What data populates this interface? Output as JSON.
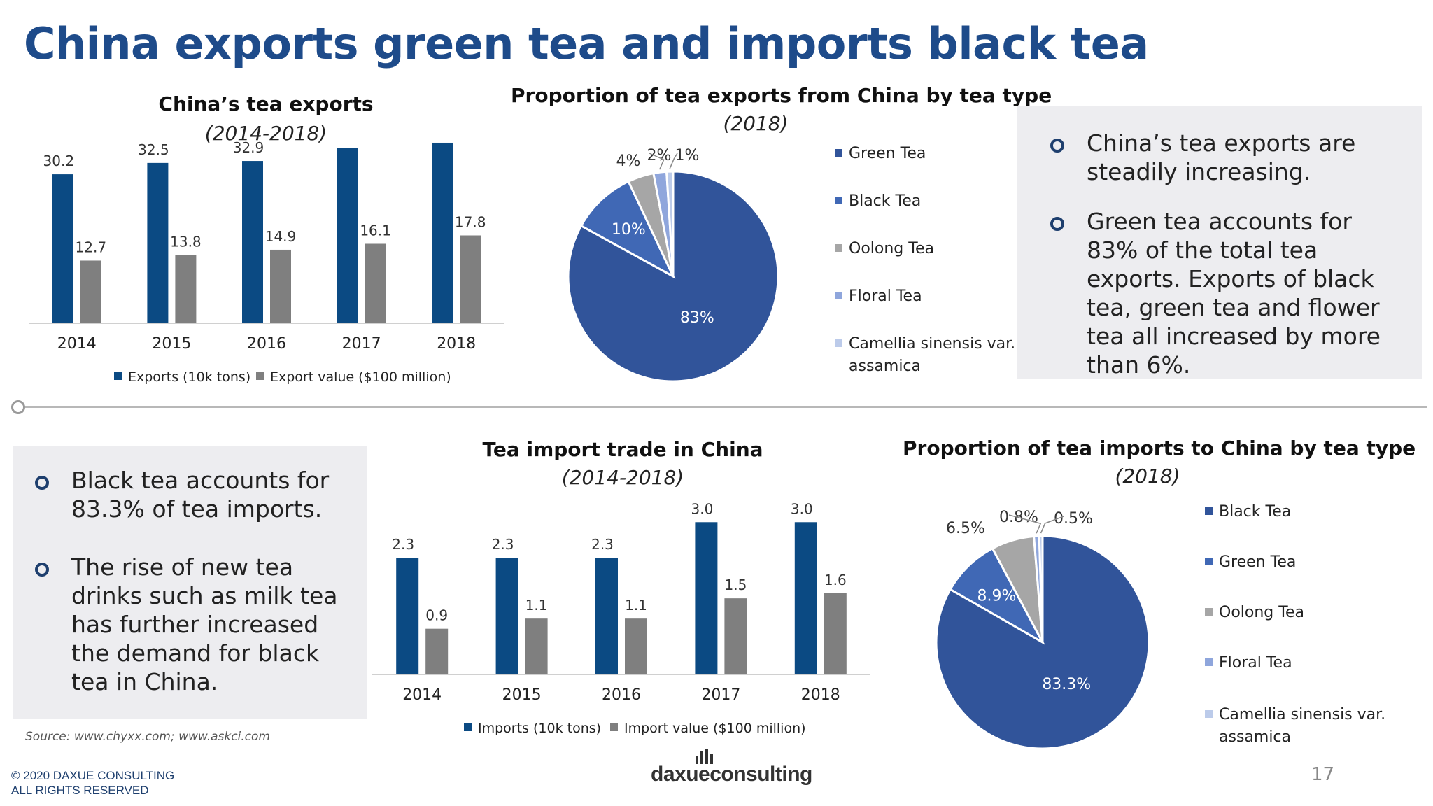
{
  "header": {
    "title": "China exports green tea and imports black tea"
  },
  "colors": {
    "navy": "#0b4a83",
    "gray": "#7f7f7f",
    "pie_main": "#31549a",
    "pie_second": "#4068b5",
    "pie_third": "#a6a6a6",
    "pie_fourth": "#8fa6dc",
    "pie_fifth": "#bccbea",
    "title_blue": "#1e4b8a"
  },
  "chart_data": [
    {
      "id": "exports_bar",
      "type": "bar",
      "title": "China’s tea exports",
      "subtitle": "(2014-2018)",
      "categories": [
        "2014",
        "2015",
        "2016",
        "2017",
        "2018"
      ],
      "series": [
        {
          "name": "Exports (10k tons)",
          "values": [
            30.2,
            32.5,
            32.9,
            35.5,
            36.6
          ],
          "labels": [
            "30.2",
            "32.5",
            "32.9",
            "35.5",
            "36.6"
          ]
        },
        {
          "name": "Export value ($100 million)",
          "values": [
            12.7,
            13.8,
            14.9,
            16.1,
            17.8
          ],
          "labels": [
            "12.7",
            "13.8",
            "14.9",
            "16.1",
            "17.8"
          ]
        }
      ],
      "ylim": [
        0,
        40
      ],
      "grid": false,
      "legend": "bottom"
    },
    {
      "id": "exports_pie",
      "type": "pie",
      "title": "Proportion of tea exports from China by tea type",
      "subtitle": "(2018)",
      "slices": [
        {
          "name": "Green Tea",
          "value": 83,
          "label": "83%"
        },
        {
          "name": "Black Tea",
          "value": 10,
          "label": "10%"
        },
        {
          "name": "Oolong Tea",
          "value": 4,
          "label": "4%"
        },
        {
          "name": "Floral Tea",
          "value": 2,
          "label": "2%"
        },
        {
          "name": "Camellia sinensis var. assamica",
          "value": 1,
          "label": "1%"
        }
      ],
      "legend": "right"
    },
    {
      "id": "imports_bar",
      "type": "bar",
      "title": "Tea import trade in China",
      "subtitle": "(2014-2018)",
      "categories": [
        "2014",
        "2015",
        "2016",
        "2017",
        "2018"
      ],
      "series": [
        {
          "name": "Imports (10k tons)",
          "values": [
            2.3,
            2.3,
            2.3,
            3.0,
            3.0
          ],
          "labels": [
            "2.3",
            "2.3",
            "2.3",
            "3.0",
            "3.0"
          ]
        },
        {
          "name": "Import value ($100 million)",
          "values": [
            0.9,
            1.1,
            1.1,
            1.5,
            1.6
          ],
          "labels": [
            "0.9",
            "1.1",
            "1.1",
            "1.5",
            "1.6"
          ]
        }
      ],
      "ylim": [
        0,
        3.5
      ],
      "grid": false,
      "legend": "bottom"
    },
    {
      "id": "imports_pie",
      "type": "pie",
      "title": "Proportion of tea imports to China by tea type",
      "subtitle": "(2018)",
      "slices": [
        {
          "name": "Black Tea",
          "value": 83.3,
          "label": "83.3%"
        },
        {
          "name": "Green Tea",
          "value": 8.9,
          "label": "8.9%"
        },
        {
          "name": "Oolong Tea",
          "value": 6.5,
          "label": "6.5%"
        },
        {
          "name": "Floral Tea",
          "value": 0.8,
          "label": "0.8%"
        },
        {
          "name": "Camellia sinensis var. assamica",
          "value": 0.5,
          "label": "0.5%"
        }
      ],
      "legend": "right"
    }
  ],
  "legend_text": {
    "camellia_line1": "Camellia sinensis var.",
    "camellia_line2": "assamica"
  },
  "export_notes": [
    "China’s tea exports are steadily increasing.",
    "Green tea accounts for 83% of the total tea exports. Exports of black tea, green tea and flower tea all increased by more than 6%."
  ],
  "import_notes": [
    "Black tea accounts for 83.3% of tea imports.",
    "The rise of new tea drinks such as milk tea has further increased the demand for black tea in China."
  ],
  "footer": {
    "source": "Source: www.chyxx.com; www.askci.com",
    "copyright_line1": "© 2020 DAXUE CONSULTING",
    "copyright_line2": "ALL RIGHTS RESERVED",
    "logo_text": "daxueconsulting",
    "page_number": "17"
  }
}
